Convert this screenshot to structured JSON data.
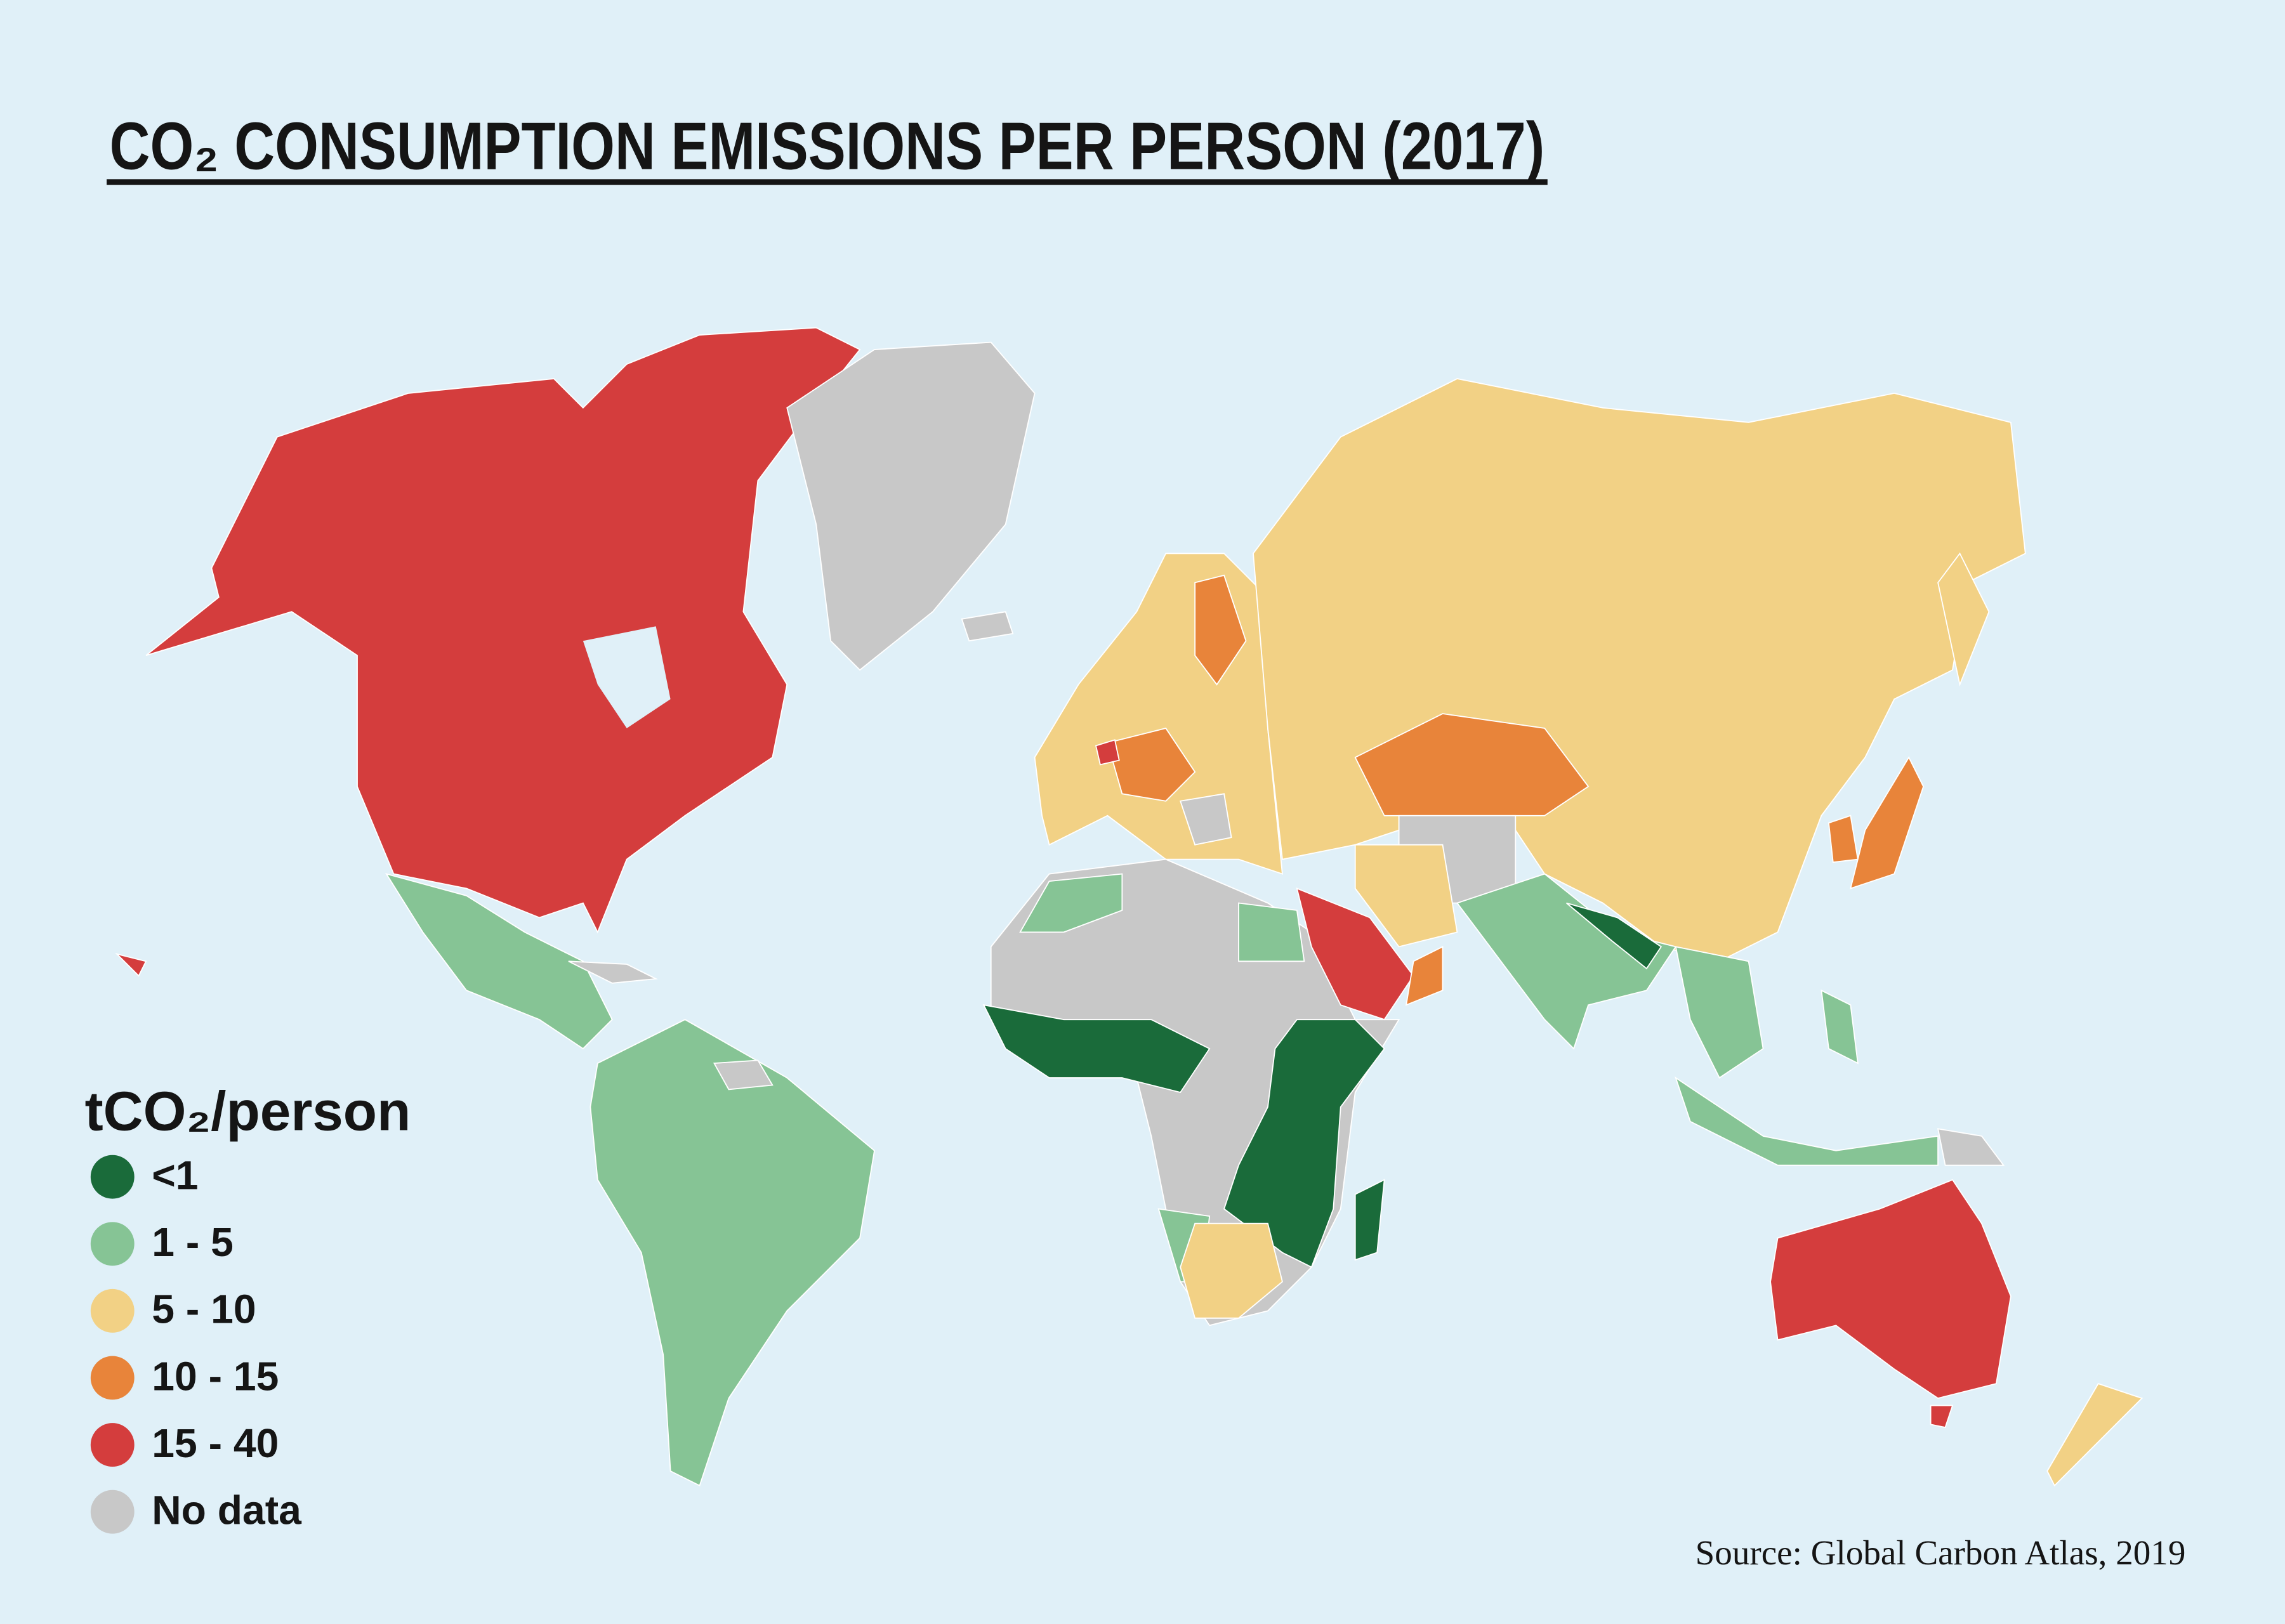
{
  "title": "CO₂ CONSUMPTION EMISSIONS PER PERSON (2017)",
  "legend": {
    "title": "tCO₂/person",
    "items": [
      {
        "label": "<1",
        "color": "#1a6b3a"
      },
      {
        "label": "1 - 5",
        "color": "#86c495"
      },
      {
        "label": "5 - 10",
        "color": "#f2d185"
      },
      {
        "label": "10 - 15",
        "color": "#e8843a"
      },
      {
        "label": "15 - 40",
        "color": "#d43d3d"
      },
      {
        "label": "No data",
        "color": "#c8c8c8"
      }
    ]
  },
  "source": "Source: Global Carbon Atlas, 2019"
}
